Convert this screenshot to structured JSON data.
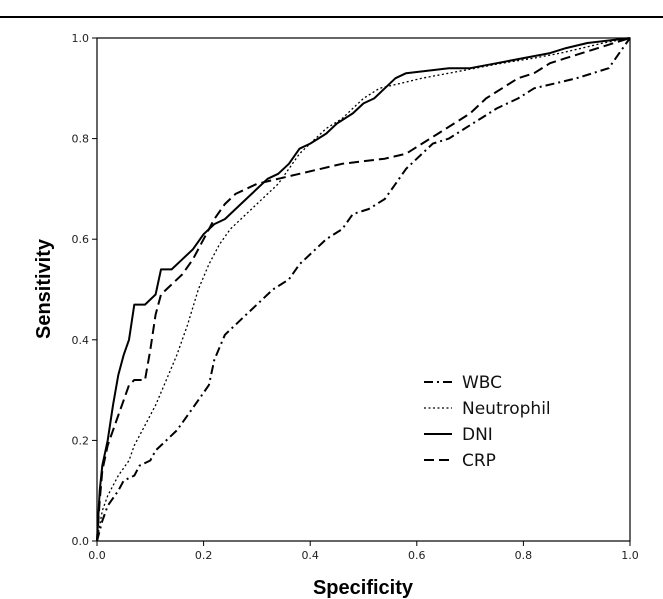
{
  "chart_data": {
    "type": "line",
    "title": "",
    "xlabel": "Specificity",
    "ylabel": "Sensitivity",
    "xlim": [
      0,
      1
    ],
    "ylim": [
      0,
      1
    ],
    "x_ticks": [
      "0.0",
      "0.2",
      "0.4",
      "0.6",
      "0.8",
      "1.0"
    ],
    "y_ticks": [
      "0.0",
      "0.2",
      "0.4",
      "0.6",
      "0.8",
      "1.0"
    ],
    "grid": false,
    "legend_position": "bottom-right",
    "series": [
      {
        "name": "WBC",
        "dash": "dashdot",
        "color": "#000000",
        "points": [
          [
            0,
            0
          ],
          [
            0.01,
            0.04
          ],
          [
            0.02,
            0.07
          ],
          [
            0.04,
            0.1
          ],
          [
            0.05,
            0.12
          ],
          [
            0.07,
            0.13
          ],
          [
            0.08,
            0.15
          ],
          [
            0.1,
            0.16
          ],
          [
            0.11,
            0.18
          ],
          [
            0.13,
            0.2
          ],
          [
            0.15,
            0.22
          ],
          [
            0.17,
            0.25
          ],
          [
            0.19,
            0.28
          ],
          [
            0.21,
            0.31
          ],
          [
            0.22,
            0.36
          ],
          [
            0.24,
            0.41
          ],
          [
            0.26,
            0.43
          ],
          [
            0.28,
            0.45
          ],
          [
            0.3,
            0.47
          ],
          [
            0.33,
            0.5
          ],
          [
            0.36,
            0.52
          ],
          [
            0.38,
            0.55
          ],
          [
            0.41,
            0.58
          ],
          [
            0.43,
            0.6
          ],
          [
            0.46,
            0.62
          ],
          [
            0.48,
            0.65
          ],
          [
            0.51,
            0.66
          ],
          [
            0.54,
            0.68
          ],
          [
            0.56,
            0.71
          ],
          [
            0.58,
            0.74
          ],
          [
            0.6,
            0.76
          ],
          [
            0.63,
            0.79
          ],
          [
            0.66,
            0.8
          ],
          [
            0.69,
            0.82
          ],
          [
            0.72,
            0.84
          ],
          [
            0.75,
            0.86
          ],
          [
            0.79,
            0.88
          ],
          [
            0.82,
            0.9
          ],
          [
            0.86,
            0.91
          ],
          [
            0.9,
            0.92
          ],
          [
            0.93,
            0.93
          ],
          [
            0.96,
            0.94
          ],
          [
            0.98,
            0.97
          ],
          [
            1.0,
            1.0
          ]
        ]
      },
      {
        "name": "Neutrophil",
        "dash": "dotted",
        "color": "#000000",
        "points": [
          [
            0,
            0
          ],
          [
            0.01,
            0.06
          ],
          [
            0.02,
            0.09
          ],
          [
            0.04,
            0.13
          ],
          [
            0.06,
            0.16
          ],
          [
            0.07,
            0.19
          ],
          [
            0.09,
            0.23
          ],
          [
            0.11,
            0.27
          ],
          [
            0.13,
            0.32
          ],
          [
            0.15,
            0.37
          ],
          [
            0.17,
            0.43
          ],
          [
            0.19,
            0.5
          ],
          [
            0.21,
            0.55
          ],
          [
            0.23,
            0.59
          ],
          [
            0.25,
            0.62
          ],
          [
            0.27,
            0.64
          ],
          [
            0.3,
            0.67
          ],
          [
            0.32,
            0.69
          ],
          [
            0.34,
            0.71
          ],
          [
            0.36,
            0.74
          ],
          [
            0.38,
            0.77
          ],
          [
            0.4,
            0.79
          ],
          [
            0.43,
            0.82
          ],
          [
            0.46,
            0.84
          ],
          [
            0.48,
            0.86
          ],
          [
            0.5,
            0.88
          ],
          [
            0.53,
            0.9
          ],
          [
            0.57,
            0.91
          ],
          [
            0.61,
            0.92
          ],
          [
            0.66,
            0.93
          ],
          [
            0.71,
            0.94
          ],
          [
            0.76,
            0.95
          ],
          [
            0.82,
            0.96
          ],
          [
            0.87,
            0.97
          ],
          [
            0.91,
            0.98
          ],
          [
            0.95,
            0.99
          ],
          [
            1.0,
            1.0
          ]
        ]
      },
      {
        "name": "DNI",
        "dash": "solid",
        "color": "#000000",
        "points": [
          [
            0,
            0
          ],
          [
            0.005,
            0.1
          ],
          [
            0.01,
            0.15
          ],
          [
            0.02,
            0.2
          ],
          [
            0.03,
            0.27
          ],
          [
            0.04,
            0.33
          ],
          [
            0.05,
            0.37
          ],
          [
            0.06,
            0.4
          ],
          [
            0.07,
            0.47
          ],
          [
            0.09,
            0.47
          ],
          [
            0.11,
            0.49
          ],
          [
            0.12,
            0.54
          ],
          [
            0.14,
            0.54
          ],
          [
            0.16,
            0.56
          ],
          [
            0.18,
            0.58
          ],
          [
            0.2,
            0.61
          ],
          [
            0.22,
            0.63
          ],
          [
            0.24,
            0.64
          ],
          [
            0.26,
            0.66
          ],
          [
            0.28,
            0.68
          ],
          [
            0.3,
            0.7
          ],
          [
            0.32,
            0.72
          ],
          [
            0.34,
            0.73
          ],
          [
            0.36,
            0.75
          ],
          [
            0.38,
            0.78
          ],
          [
            0.4,
            0.79
          ],
          [
            0.43,
            0.81
          ],
          [
            0.45,
            0.83
          ],
          [
            0.48,
            0.85
          ],
          [
            0.5,
            0.87
          ],
          [
            0.52,
            0.88
          ],
          [
            0.54,
            0.9
          ],
          [
            0.56,
            0.92
          ],
          [
            0.58,
            0.93
          ],
          [
            0.62,
            0.935
          ],
          [
            0.66,
            0.94
          ],
          [
            0.7,
            0.94
          ],
          [
            0.75,
            0.95
          ],
          [
            0.8,
            0.96
          ],
          [
            0.85,
            0.97
          ],
          [
            0.88,
            0.98
          ],
          [
            0.92,
            0.99
          ],
          [
            0.96,
            0.995
          ],
          [
            1.0,
            1.0
          ]
        ]
      },
      {
        "name": "CRP",
        "dash": "dashed",
        "color": "#000000",
        "points": [
          [
            0,
            0
          ],
          [
            0.005,
            0.08
          ],
          [
            0.01,
            0.14
          ],
          [
            0.02,
            0.19
          ],
          [
            0.03,
            0.22
          ],
          [
            0.04,
            0.25
          ],
          [
            0.05,
            0.28
          ],
          [
            0.06,
            0.31
          ],
          [
            0.07,
            0.32
          ],
          [
            0.09,
            0.32
          ],
          [
            0.1,
            0.38
          ],
          [
            0.11,
            0.45
          ],
          [
            0.12,
            0.49
          ],
          [
            0.14,
            0.51
          ],
          [
            0.16,
            0.53
          ],
          [
            0.18,
            0.56
          ],
          [
            0.2,
            0.6
          ],
          [
            0.22,
            0.64
          ],
          [
            0.24,
            0.67
          ],
          [
            0.26,
            0.69
          ],
          [
            0.28,
            0.7
          ],
          [
            0.3,
            0.71
          ],
          [
            0.34,
            0.72
          ],
          [
            0.38,
            0.73
          ],
          [
            0.42,
            0.74
          ],
          [
            0.46,
            0.75
          ],
          [
            0.5,
            0.755
          ],
          [
            0.54,
            0.76
          ],
          [
            0.58,
            0.77
          ],
          [
            0.61,
            0.79
          ],
          [
            0.64,
            0.81
          ],
          [
            0.67,
            0.83
          ],
          [
            0.7,
            0.85
          ],
          [
            0.73,
            0.88
          ],
          [
            0.76,
            0.9
          ],
          [
            0.79,
            0.92
          ],
          [
            0.82,
            0.93
          ],
          [
            0.85,
            0.95
          ],
          [
            0.88,
            0.96
          ],
          [
            0.91,
            0.97
          ],
          [
            0.94,
            0.98
          ],
          [
            0.97,
            0.99
          ],
          [
            1.0,
            1.0
          ]
        ]
      }
    ]
  }
}
